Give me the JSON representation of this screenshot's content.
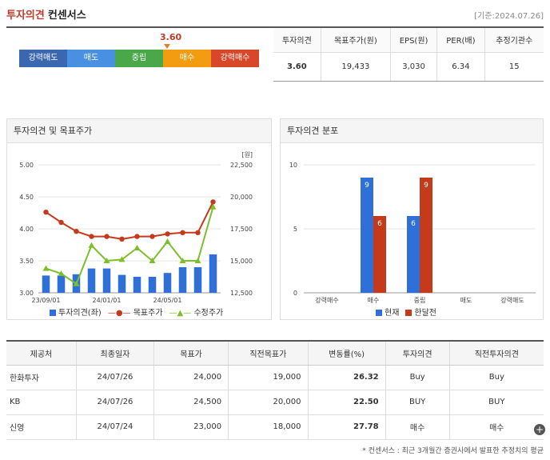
{
  "header": {
    "title_red": "투자의견",
    "title_black": "컨센서스",
    "date": "[기준:2024.07.26]"
  },
  "scale": {
    "marker_value": "3.60",
    "segments": [
      {
        "label": "강력매도",
        "color": "#3a67b0"
      },
      {
        "label": "매도",
        "color": "#4a90e2"
      },
      {
        "label": "중립",
        "color": "#4aa84a"
      },
      {
        "label": "매수",
        "color": "#f39c12"
      },
      {
        "label": "강력매수",
        "color": "#d9472b"
      }
    ]
  },
  "consensus": {
    "headers": [
      "투자의견",
      "목표주가(원)",
      "EPS(원)",
      "PER(배)",
      "추정기관수"
    ],
    "values": [
      "3.60",
      "19,433",
      "3,030",
      "6.34",
      "15"
    ]
  },
  "left_panel": {
    "title": "투자의견 및 목표주가"
  },
  "right_panel": {
    "title": "투자의견 분포"
  },
  "chart_data": [
    {
      "type": "bar+line",
      "title": "투자의견 및 목표주가",
      "x_ticks": [
        "23/09/01",
        "24/01/01",
        "24/05/01"
      ],
      "left_axis": {
        "ticks": [
          "5.00",
          "4.50",
          "4.00",
          "3.50",
          "3.00"
        ],
        "ylim": [
          3.0,
          5.0
        ]
      },
      "right_axis": {
        "unit": "[원]",
        "ticks": [
          "22,500",
          "20,000",
          "17,500",
          "15,000",
          "12,500"
        ],
        "ylim": [
          12500,
          22500
        ]
      },
      "series": [
        {
          "name": "투자의견(좌)",
          "type": "bar",
          "color": "#2e6fd8",
          "values": [
            3.27,
            3.27,
            3.29,
            3.38,
            3.38,
            3.28,
            3.25,
            3.25,
            3.31,
            3.4,
            3.4,
            3.6
          ]
        },
        {
          "name": "목표주가",
          "type": "line",
          "color": "#c43a1b",
          "values": [
            18800,
            18000,
            17300,
            16900,
            16900,
            16700,
            16900,
            16900,
            17100,
            17200,
            17200,
            19600
          ]
        },
        {
          "name": "수정주가",
          "type": "line",
          "color": "#7cbf2a",
          "values": [
            14400,
            14000,
            13200,
            16200,
            15000,
            15100,
            16000,
            15000,
            16500,
            15000,
            15000,
            19200
          ]
        }
      ]
    },
    {
      "type": "bar",
      "title": "투자의견 분포",
      "categories": [
        "강력매수",
        "매수",
        "중립",
        "매도",
        "강력매도"
      ],
      "ylim": [
        0,
        10
      ],
      "y_ticks": [
        "10",
        "5",
        "0"
      ],
      "series": [
        {
          "name": "현재",
          "color": "#2e6fd8",
          "values": [
            0,
            9,
            6,
            0,
            0
          ],
          "labels": [
            "",
            "9",
            "6",
            "",
            ""
          ]
        },
        {
          "name": "한달전",
          "color": "#c43a1b",
          "values": [
            0,
            6,
            9,
            0,
            0
          ],
          "labels": [
            "",
            "6",
            "9",
            "",
            ""
          ]
        }
      ]
    }
  ],
  "brokers": {
    "headers": [
      "제공처",
      "최종일자",
      "목표가",
      "직전목표가",
      "변동률(%)",
      "투자의견",
      "직전투자의견"
    ],
    "rows": [
      [
        "한화투자",
        "24/07/26",
        "24,000",
        "19,000",
        "26.32",
        "Buy",
        "Buy"
      ],
      [
        "KB",
        "24/07/26",
        "24,500",
        "20,000",
        "22.50",
        "BUY",
        "BUY"
      ],
      [
        "신영",
        "24/07/24",
        "23,000",
        "18,000",
        "27.78",
        "매수",
        "매수"
      ]
    ]
  },
  "footnote": "* 컨센서스 : 최근 3개월간 증권사에서 발표한 추정치의 평균"
}
